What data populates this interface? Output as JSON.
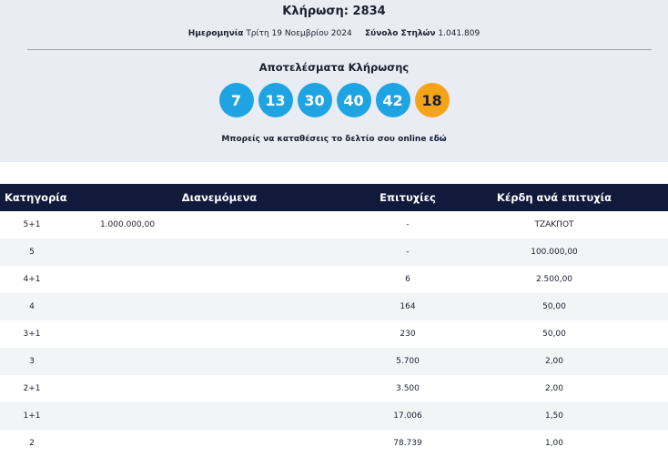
{
  "header": {
    "title": "Κλήρωση: 2834",
    "date_label": "Ημερομηνία",
    "date": "Τρίτη 19 Νοεμβρίου 2024",
    "columns_label": "Σύνολο Στηλών",
    "columns_total": "1.041.809"
  },
  "results": {
    "title": "Αποτελέσματα Κλήρωσης",
    "numbers": [
      7,
      13,
      30,
      40,
      42
    ],
    "joker": 18,
    "note": "Μπορείς να καταθέσεις το δελτίο σου online",
    "link": "εδώ"
  },
  "table": {
    "columns": [
      "Κατηγορία",
      "Διανεμόμενα",
      "Επιτυχίες",
      "Κέρδη ανά επιτυχία"
    ],
    "rows": [
      {
        "category": "5+1",
        "distributed": "1.000.000,00",
        "winners": "-",
        "prize": "ΤΖΑΚΠΟΤ"
      },
      {
        "category": "5",
        "winners": "-",
        "prize": "100.000,00"
      },
      {
        "category": "4+1",
        "winners": "6",
        "prize": "2.500,00"
      },
      {
        "category": "4",
        "winners": "164",
        "prize": "50,00"
      },
      {
        "category": "3+1",
        "winners": "230",
        "prize": "50,00"
      },
      {
        "category": "3",
        "winners": "5.700",
        "prize": "2,00"
      },
      {
        "category": "2+1",
        "winners": "3.500",
        "prize": "2,00"
      },
      {
        "category": "1+1",
        "winners": "17.006",
        "prize": "1,50"
      },
      {
        "category": "2",
        "winners": "78.739",
        "prize": "1,00"
      }
    ]
  }
}
